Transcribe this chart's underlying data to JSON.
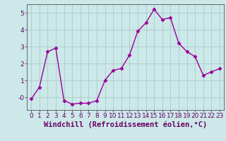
{
  "x": [
    0,
    1,
    2,
    3,
    4,
    5,
    6,
    7,
    8,
    9,
    10,
    11,
    12,
    13,
    14,
    15,
    16,
    17,
    18,
    19,
    20,
    21,
    22,
    23
  ],
  "y": [
    -0.1,
    0.6,
    2.7,
    2.9,
    -0.2,
    -0.4,
    -0.35,
    -0.35,
    -0.2,
    1.0,
    1.6,
    1.7,
    2.5,
    3.9,
    4.4,
    5.2,
    4.6,
    4.7,
    3.2,
    2.7,
    2.4,
    1.3,
    1.5,
    1.7
  ],
  "line_color": "#990099",
  "marker": "D",
  "markersize": 2.5,
  "bg_color": "#cce8e8",
  "grid_color": "#aacccc",
  "xlabel": "Windchill (Refroidissement éolien,°C)",
  "xlim": [
    -0.5,
    23.5
  ],
  "ylim": [
    -0.75,
    5.5
  ],
  "yticks": [
    0,
    1,
    2,
    3,
    4,
    5
  ],
  "ytick_labels": [
    "-0",
    "1",
    "2",
    "3",
    "4",
    "5"
  ],
  "xticks": [
    0,
    1,
    2,
    3,
    4,
    5,
    6,
    7,
    8,
    9,
    10,
    11,
    12,
    13,
    14,
    15,
    16,
    17,
    18,
    19,
    20,
    21,
    22,
    23
  ],
  "xlabel_fontsize": 7.5,
  "tick_fontsize": 6.5,
  "linewidth": 1.0,
  "spine_color": "#555555",
  "tick_color": "#660066",
  "label_color": "#660066"
}
